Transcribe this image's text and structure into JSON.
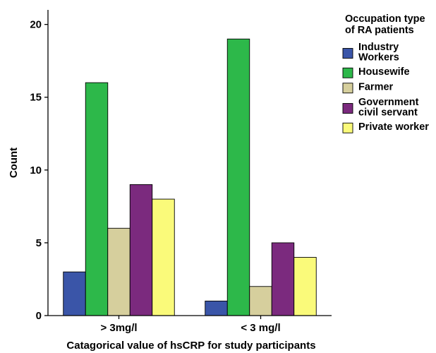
{
  "chart_data": {
    "type": "bar",
    "xlabel": "Catagorical value of hsCRP for study participants",
    "ylabel": "Count",
    "ylim": [
      0,
      21
    ],
    "yticks": [
      0,
      5,
      10,
      15,
      20
    ],
    "categories": [
      "> 3mg/l",
      "< 3 mg/l"
    ],
    "legend": {
      "title": [
        "Occupation type",
        "of RA patients"
      ],
      "placement": "top-right"
    },
    "grid": false,
    "series": [
      {
        "name": [
          "Industry",
          "Workers"
        ],
        "color": "#3a55a8",
        "values": [
          3,
          1
        ]
      },
      {
        "name": [
          "Housewife"
        ],
        "color": "#2db84a",
        "values": [
          16,
          19
        ]
      },
      {
        "name": [
          "Farmer"
        ],
        "color": "#d6cf9d",
        "values": [
          6,
          2
        ]
      },
      {
        "name": [
          "Government",
          "civil servant"
        ],
        "color": "#7b2a7e",
        "values": [
          9,
          5
        ]
      },
      {
        "name": [
          "Private worker"
        ],
        "color": "#fafa7a",
        "values": [
          8,
          4
        ]
      }
    ]
  }
}
